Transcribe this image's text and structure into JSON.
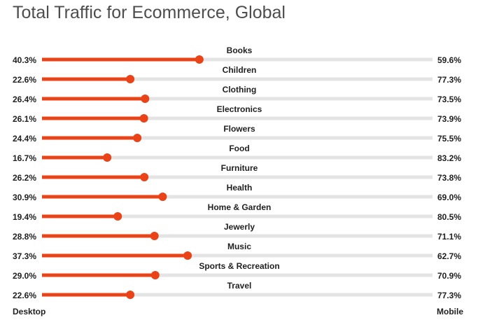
{
  "title": "Total Traffic for Ecommerce, Global",
  "left_label": "Desktop",
  "right_label": "Mobile",
  "colors": {
    "accent": "#ea4318",
    "track": "#e4e4e4",
    "text": "#212121",
    "title": "#4d4d4d"
  },
  "chart_data": {
    "type": "bar",
    "title": "Total Traffic for Ecommerce, Global",
    "categories": [
      "Books",
      "Children",
      "Clothing",
      "Electronics",
      "Flowers",
      "Food",
      "Furniture",
      "Health",
      "Home & Garden",
      "Jewerly",
      "Music",
      "Sports & Recreation",
      "Travel"
    ],
    "series": [
      {
        "name": "Desktop",
        "values": [
          40.3,
          22.6,
          26.4,
          26.1,
          24.4,
          16.7,
          26.2,
          30.9,
          19.4,
          28.8,
          37.3,
          29.0,
          22.6
        ]
      },
      {
        "name": "Mobile",
        "values": [
          59.6,
          77.3,
          73.5,
          73.9,
          75.5,
          83.2,
          73.8,
          69.0,
          80.5,
          71.1,
          62.7,
          70.9,
          77.3
        ]
      }
    ],
    "value_format": "percent",
    "ylim": [
      0,
      100
    ],
    "legend": "none",
    "grid": false
  }
}
